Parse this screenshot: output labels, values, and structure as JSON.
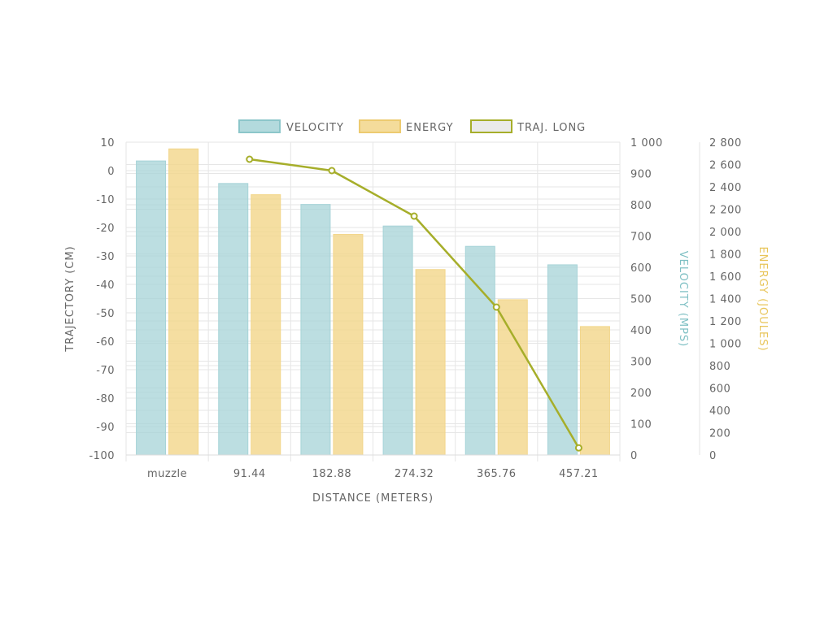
{
  "chart_data": {
    "type": "bar",
    "categories": [
      "muzzle",
      "91.44",
      "182.88",
      "274.32",
      "365.76",
      "457.21"
    ],
    "xlabel": "DISTANCE (METERS)",
    "legend": {
      "position": "top"
    },
    "grid": true,
    "series": [
      {
        "name": "VELOCITY",
        "type": "bar",
        "axis": "velocity",
        "values": [
          940,
          868,
          801,
          732,
          667,
          608
        ],
        "color": "#a6d3d7"
      },
      {
        "name": "ENERGY",
        "type": "bar",
        "axis": "energy",
        "values": [
          2740,
          2330,
          1975,
          1660,
          1390,
          1150
        ],
        "color": "#f2d68a"
      },
      {
        "name": "TRAJ. LONG",
        "type": "line",
        "axis": "trajectory",
        "values": [
          null,
          4,
          0,
          -16,
          -48,
          -97.5
        ],
        "color": "#a6ae2a"
      }
    ],
    "axes": {
      "trajectory": {
        "label": "TRAJECTORY (CM)",
        "range": [
          -100,
          10
        ],
        "ticks": [
          "10",
          "0",
          "-10",
          "-20",
          "-30",
          "-40",
          "-50",
          "-60",
          "-70",
          "-80",
          "-90",
          "-100"
        ],
        "color": "#666666"
      },
      "velocity": {
        "label": "VELOCITY (MPS)",
        "range": [
          0,
          1000
        ],
        "ticks": [
          "1 000",
          "900",
          "800",
          "700",
          "600",
          "500",
          "400",
          "300",
          "200",
          "100",
          "0"
        ],
        "color": "#7fc0c4"
      },
      "energy": {
        "label": "ENERGY (JOULES)",
        "range": [
          0,
          2800
        ],
        "ticks": [
          "2 800",
          "2 600",
          "2 400",
          "2 200",
          "2 000",
          "1 800",
          "1 600",
          "1 400",
          "1 200",
          "1 000",
          "800",
          "600",
          "400",
          "200",
          "0"
        ],
        "color": "#e8c55a"
      }
    }
  }
}
